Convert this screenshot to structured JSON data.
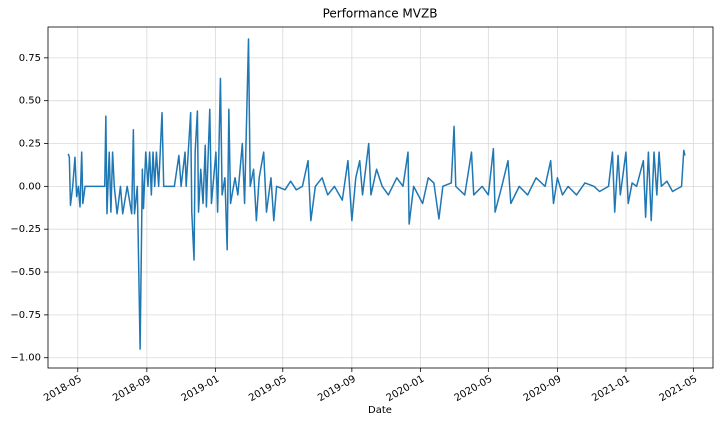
{
  "chart_data": {
    "type": "line",
    "title": "Performance MVZB",
    "x_label": "Date",
    "x": [
      "2018-04-14",
      "2018-04-16",
      "2018-04-18",
      "2018-04-22",
      "2018-04-26",
      "2018-04-29",
      "2018-05-02",
      "2018-05-05",
      "2018-05-08",
      "2018-05-10",
      "2018-05-14",
      "2018-06-01",
      "2018-06-18",
      "2018-06-20",
      "2018-06-22",
      "2018-06-26",
      "2018-06-29",
      "2018-07-02",
      "2018-07-05",
      "2018-07-10",
      "2018-07-16",
      "2018-07-20",
      "2018-07-28",
      "2018-08-05",
      "2018-08-08",
      "2018-08-10",
      "2018-08-15",
      "2018-08-20",
      "2018-08-24",
      "2018-08-26",
      "2018-08-30",
      "2018-09-03",
      "2018-09-06",
      "2018-09-09",
      "2018-09-12",
      "2018-09-15",
      "2018-09-18",
      "2018-09-22",
      "2018-09-28",
      "2018-10-01",
      "2018-10-20",
      "2018-10-28",
      "2018-11-01",
      "2018-11-08",
      "2018-11-10",
      "2018-11-18",
      "2018-11-20",
      "2018-11-24",
      "2018-11-26",
      "2018-11-30",
      "2018-12-02",
      "2018-12-06",
      "2018-12-10",
      "2018-12-14",
      "2018-12-16",
      "2018-12-22",
      "2018-12-25",
      "2019-01-02",
      "2019-01-05",
      "2019-01-10",
      "2019-01-13",
      "2019-01-18",
      "2019-01-22",
      "2019-01-25",
      "2019-01-28",
      "2019-02-05",
      "2019-02-10",
      "2019-02-18",
      "2019-02-22",
      "2019-03-01",
      "2019-03-04",
      "2019-03-10",
      "2019-03-15",
      "2019-03-20",
      "2019-03-28",
      "2019-04-02",
      "2019-04-10",
      "2019-04-15",
      "2019-04-20",
      "2019-05-05",
      "2019-05-15",
      "2019-05-25",
      "2019-06-05",
      "2019-06-15",
      "2019-06-20",
      "2019-06-28",
      "2019-07-10",
      "2019-07-20",
      "2019-08-01",
      "2019-08-15",
      "2019-08-25",
      "2019-09-01",
      "2019-09-08",
      "2019-09-15",
      "2019-09-20",
      "2019-10-01",
      "2019-10-05",
      "2019-10-15",
      "2019-10-25",
      "2019-11-05",
      "2019-11-20",
      "2019-12-01",
      "2019-12-10",
      "2019-12-12",
      "2019-12-20",
      "2020-01-05",
      "2020-01-15",
      "2020-01-25",
      "2020-02-03",
      "2020-02-10",
      "2020-02-25",
      "2020-03-01",
      "2020-03-04",
      "2020-03-20",
      "2020-04-01",
      "2020-04-05",
      "2020-04-20",
      "2020-05-01",
      "2020-05-10",
      "2020-05-13",
      "2020-05-25",
      "2020-06-05",
      "2020-06-10",
      "2020-06-25",
      "2020-07-10",
      "2020-07-25",
      "2020-08-10",
      "2020-08-20",
      "2020-08-25",
      "2020-09-01",
      "2020-09-10",
      "2020-09-20",
      "2020-10-05",
      "2020-10-20",
      "2020-11-05",
      "2020-11-15",
      "2020-12-01",
      "2020-12-08",
      "2020-12-12",
      "2020-12-18",
      "2020-12-22",
      "2021-01-01",
      "2021-01-05",
      "2021-01-12",
      "2021-01-20",
      "2021-02-01",
      "2021-02-05",
      "2021-02-10",
      "2021-02-15",
      "2021-02-20",
      "2021-02-25",
      "2021-03-01",
      "2021-03-05",
      "2021-03-15",
      "2021-03-25",
      "2021-04-10",
      "2021-04-14",
      "2021-04-16"
    ],
    "series": [
      {
        "name": "MVZB",
        "color": "#1f77b4",
        "values": [
          0.19,
          0.17,
          -0.11,
          0.0,
          0.17,
          -0.06,
          0.0,
          -0.12,
          0.2,
          -0.1,
          0.0,
          0.0,
          0.0,
          0.41,
          -0.16,
          0.2,
          -0.15,
          0.2,
          0.0,
          -0.16,
          0.0,
          -0.16,
          0.0,
          -0.16,
          0.33,
          -0.16,
          0.0,
          -0.95,
          0.1,
          -0.13,
          0.2,
          0.0,
          0.2,
          -0.05,
          0.2,
          0.0,
          0.2,
          0.0,
          0.43,
          0.0,
          0.0,
          0.18,
          0.0,
          0.2,
          0.0,
          0.43,
          -0.15,
          -0.43,
          0.2,
          0.44,
          -0.15,
          0.1,
          -0.1,
          0.24,
          -0.12,
          0.45,
          -0.1,
          0.2,
          -0.15,
          0.63,
          -0.05,
          0.05,
          -0.37,
          0.45,
          -0.1,
          0.05,
          -0.05,
          0.25,
          -0.1,
          0.86,
          0.0,
          0.1,
          -0.2,
          0.05,
          0.2,
          -0.15,
          0.05,
          -0.2,
          0.0,
          -0.02,
          0.03,
          -0.02,
          0.0,
          0.15,
          -0.2,
          0.0,
          0.05,
          -0.05,
          0.0,
          -0.08,
          0.15,
          -0.2,
          0.05,
          0.15,
          -0.05,
          0.25,
          -0.05,
          0.1,
          0.0,
          -0.05,
          0.05,
          0.0,
          0.2,
          -0.22,
          0.0,
          -0.1,
          0.05,
          0.02,
          -0.19,
          0.0,
          0.02,
          0.35,
          0.0,
          -0.05,
          0.2,
          -0.05,
          0.0,
          -0.05,
          0.22,
          -0.15,
          0.0,
          0.15,
          -0.1,
          0.0,
          -0.05,
          0.05,
          0.0,
          0.15,
          -0.1,
          0.05,
          -0.05,
          0.0,
          -0.05,
          0.02,
          0.0,
          -0.03,
          0.0,
          0.2,
          -0.15,
          0.18,
          -0.05,
          0.2,
          -0.1,
          0.02,
          0.0,
          0.15,
          -0.18,
          0.2,
          -0.2,
          0.2,
          -0.05,
          0.2,
          0.0,
          0.03,
          -0.03,
          0.0,
          0.21,
          0.18
        ]
      }
    ],
    "xlim": [
      "2018-03-09",
      "2021-06-05"
    ],
    "xticks": [
      {
        "value": "2018-05-01",
        "label": "2018-05"
      },
      {
        "value": "2018-09-01",
        "label": "2018-09"
      },
      {
        "value": "2019-01-01",
        "label": "2019-01"
      },
      {
        "value": "2019-05-01",
        "label": "2019-05"
      },
      {
        "value": "2019-09-01",
        "label": "2019-09"
      },
      {
        "value": "2020-01-01",
        "label": "2020-01"
      },
      {
        "value": "2020-05-01",
        "label": "2020-05"
      },
      {
        "value": "2020-09-01",
        "label": "2020-09"
      },
      {
        "value": "2021-01-01",
        "label": "2021-01"
      },
      {
        "value": "2021-05-01",
        "label": "2021-05"
      }
    ],
    "ylim": [
      -1.06,
      0.93
    ],
    "yticks": [
      {
        "value": -1,
        "label": "−1.00"
      },
      {
        "value": -0.75,
        "label": "−0.75"
      },
      {
        "value": -0.5,
        "label": "−0.50"
      },
      {
        "value": -0.25,
        "label": "−0.25"
      },
      {
        "value": 0,
        "label": "0.00"
      },
      {
        "value": 0.25,
        "label": "0.25"
      },
      {
        "value": 0.5,
        "label": "0.50"
      },
      {
        "value": 0.75,
        "label": "0.75"
      }
    ],
    "grid": true
  }
}
